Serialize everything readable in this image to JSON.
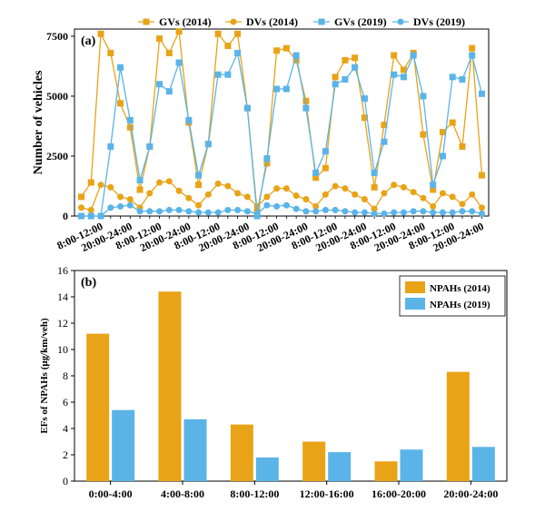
{
  "colors": {
    "orange": "#E8A317",
    "blue": "#5AB4E8",
    "axis": "#000000"
  },
  "chart_data": [
    {
      "type": "line",
      "panel_label": "(a)",
      "ylabel": "Number of vehicles",
      "ylim": [
        0,
        7800
      ],
      "yticks": [
        0,
        2500,
        5000,
        7500
      ],
      "xtick_labels": [
        "8:00-12:00",
        "20:00-24:00",
        "8:00-12:00",
        "20:00-24:00",
        "8:00-12:00",
        "20:00-24:00",
        "8:00-12:00",
        "20:00-24:00",
        "8:00-12:00",
        "20:00-24:00",
        "8:00-12:00",
        "20:00-24:00",
        "8:00-12:00",
        "20:00-24:00"
      ],
      "legend_placement": "top",
      "x": [
        1,
        2,
        3,
        4,
        5,
        6,
        7,
        8,
        9,
        10,
        11,
        12,
        13,
        14,
        15,
        16,
        17,
        18,
        19,
        20,
        21,
        22,
        23,
        24,
        25,
        26,
        27,
        28,
        29,
        30,
        31,
        32,
        33,
        34,
        35,
        36,
        37,
        38,
        39,
        40,
        41,
        42
      ],
      "series": [
        {
          "name": "GVs (2014)",
          "marker": "square",
          "color": "orange",
          "values": [
            800,
            1400,
            7600,
            6800,
            4700,
            3700,
            1100,
            2900,
            7400,
            6800,
            7700,
            3900,
            1300,
            3000,
            7600,
            7100,
            7600,
            4500,
            200,
            2200,
            6900,
            7000,
            6500,
            4800,
            1600,
            2000,
            5800,
            6500,
            6600,
            4100,
            1200,
            3800,
            6700,
            6100,
            6800,
            3400,
            1100,
            3500,
            3900,
            2900,
            7000,
            1700
          ]
        },
        {
          "name": "DVs (2014)",
          "marker": "circle",
          "color": "orange",
          "values": [
            350,
            250,
            1300,
            1200,
            800,
            700,
            350,
            950,
            1400,
            1450,
            1050,
            750,
            450,
            900,
            1350,
            1250,
            950,
            800,
            400,
            800,
            1150,
            1150,
            850,
            700,
            400,
            900,
            1250,
            1150,
            900,
            700,
            300,
            950,
            1300,
            1200,
            1000,
            750,
            400,
            950,
            800,
            500,
            900,
            350
          ]
        },
        {
          "name": "GVs (2019)",
          "marker": "square",
          "color": "blue",
          "values": [
            0,
            0,
            0,
            2900,
            6200,
            4000,
            1500,
            2900,
            5500,
            5200,
            6400,
            4000,
            1700,
            3000,
            5900,
            5900,
            6800,
            4500,
            0,
            2400,
            5300,
            5300,
            6700,
            4500,
            1800,
            2700,
            5500,
            5700,
            6200,
            4900,
            1800,
            3100,
            5900,
            5800,
            6700,
            5000,
            1300,
            2500,
            5800,
            5700,
            6700,
            5100
          ]
        },
        {
          "name": "DVs (2019)",
          "marker": "circle",
          "color": "blue",
          "values": [
            0,
            0,
            0,
            350,
            400,
            450,
            200,
            200,
            200,
            250,
            250,
            200,
            150,
            150,
            150,
            250,
            250,
            200,
            100,
            450,
            400,
            450,
            300,
            200,
            200,
            250,
            250,
            200,
            150,
            150,
            100,
            100,
            150,
            150,
            200,
            200,
            150,
            150,
            150,
            200,
            200,
            100
          ]
        }
      ]
    },
    {
      "type": "bar",
      "panel_label": "(b)",
      "ylabel": "EFs of NPAHs (μg/km/veh)",
      "ylim": [
        0,
        16
      ],
      "yticks": [
        0,
        2,
        4,
        6,
        8,
        10,
        12,
        14,
        16
      ],
      "categories": [
        "0:00-4:00",
        "4:00-8:00",
        "8:00-12:00",
        "12:00-16:00",
        "16:00-20:00",
        "20:00-24:00"
      ],
      "legend_placement": "top-right",
      "series": [
        {
          "name": "NPAHs (2014)",
          "color": "orange",
          "values": [
            11.2,
            14.4,
            4.3,
            3.0,
            1.5,
            8.3
          ]
        },
        {
          "name": "NPAHs (2019)",
          "color": "blue",
          "values": [
            5.4,
            4.7,
            1.8,
            2.2,
            2.4,
            2.6
          ]
        }
      ]
    }
  ]
}
